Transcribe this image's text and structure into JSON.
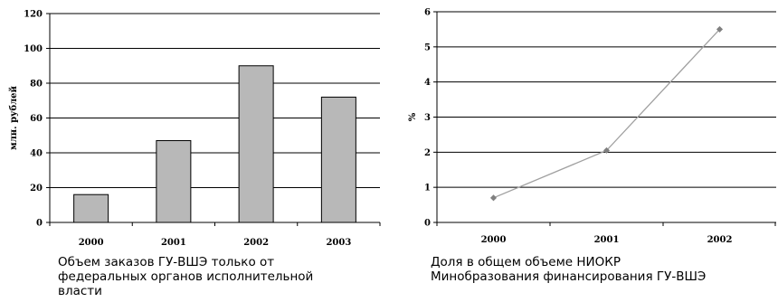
{
  "chart_data": [
    {
      "type": "bar",
      "categories": [
        "2000",
        "2001",
        "2002",
        "2003"
      ],
      "values": [
        16,
        47,
        90,
        72
      ],
      "ylabel": "млн. рублей",
      "ylim": [
        0,
        120
      ],
      "yticks": [
        "0",
        "20",
        "40",
        "60",
        "80",
        "100",
        "120"
      ],
      "grid": true,
      "bar_color": "#b8b8b8",
      "caption": [
        "Объем заказов ГУ-ВШЭ только от",
        "федеральных органов исполнительной",
        "власти"
      ]
    },
    {
      "type": "line",
      "categories": [
        "2000",
        "2001",
        "2002"
      ],
      "values": [
        0.7,
        2.05,
        5.5
      ],
      "ylabel": "%",
      "ylim": [
        0,
        6
      ],
      "yticks": [
        "0",
        "1",
        "2",
        "3",
        "4",
        "5",
        "6"
      ],
      "grid": true,
      "line_color": "#a0a0a0",
      "marker_color": "#808080",
      "caption": [
        "Доля в общем объеме НИОКР",
        "Минобразования финансирования ГУ-ВШЭ"
      ]
    }
  ]
}
